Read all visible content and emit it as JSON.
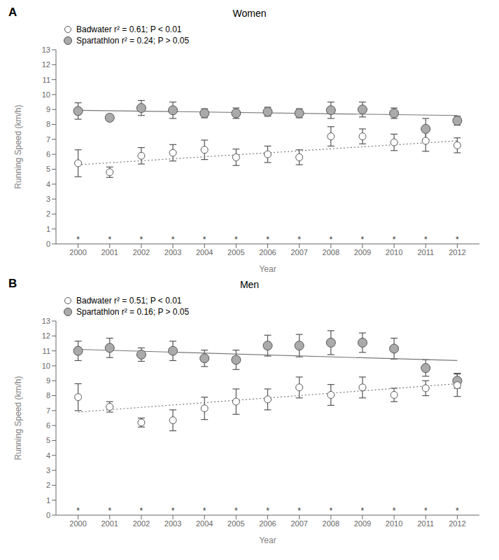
{
  "chart_data": [
    {
      "type": "scatter",
      "title": "Women",
      "annotations": [
        {
          "text": "A"
        },
        {
          "text": "*",
          "x": 2000,
          "y": 0.05,
          "color": "#333333"
        },
        {
          "text": "*",
          "x": 2001,
          "y": 0.05,
          "color": "#333333"
        },
        {
          "text": "*",
          "x": 2002,
          "y": 0.05,
          "color": "#333333"
        },
        {
          "text": "*",
          "x": 2003,
          "y": 0.05,
          "color": "#333333"
        },
        {
          "text": "*",
          "x": 2004,
          "y": 0.05,
          "color": "#333333"
        },
        {
          "text": "*",
          "x": 2005,
          "y": 0.05,
          "color": "#333333"
        },
        {
          "text": "*",
          "x": 2006,
          "y": 0.05,
          "color": "#333333"
        },
        {
          "text": "*",
          "x": 2007,
          "y": 0.05,
          "color": "#333333"
        },
        {
          "text": "*",
          "x": 2008,
          "y": 0.05,
          "color": "#333333"
        },
        {
          "text": "*",
          "x": 2009,
          "y": 0.05,
          "color": "#333333"
        },
        {
          "text": "*",
          "x": 2010,
          "y": 0.05,
          "color": "#333333"
        },
        {
          "text": "*",
          "x": 2011,
          "y": 0.05,
          "color": "#333333"
        },
        {
          "text": "*",
          "x": 2012,
          "y": 0.05,
          "color": "#333333"
        }
      ],
      "x_label": "Year",
      "y_label": "Running Speed (km/h)",
      "x": [
        2000,
        2001,
        2002,
        2003,
        2004,
        2005,
        2006,
        2007,
        2008,
        2009,
        2010,
        2011,
        2012
      ],
      "series": [
        {
          "name": "Badwater r² = 0.61; P < 0.01",
          "color": "white",
          "edge_color": "#555555",
          "marker": "circle",
          "values": [
            5.4,
            4.8,
            5.9,
            6.1,
            6.3,
            5.8,
            6.0,
            5.8,
            7.2,
            7.2,
            6.8,
            6.9,
            6.6
          ],
          "errors": [
            0.9,
            0.35,
            0.55,
            0.55,
            0.65,
            0.55,
            0.55,
            0.5,
            0.65,
            0.5,
            0.55,
            0.7,
            0.5
          ]
        },
        {
          "name": "Spartathlon r² = 0.24; P > 0.05",
          "color": "#aaaaaa",
          "edge_color": "#555555",
          "marker": "circle",
          "values": [
            8.9,
            8.45,
            9.1,
            8.95,
            8.75,
            8.75,
            8.85,
            8.75,
            8.95,
            9.0,
            8.75,
            7.7,
            8.25
          ],
          "errors": [
            0.55,
            0.2,
            0.5,
            0.55,
            0.3,
            0.35,
            0.3,
            0.3,
            0.55,
            0.5,
            0.35,
            0.7,
            0.3
          ]
        },
        {
          "type": "line",
          "line_style": "solid",
          "color": "#777777",
          "x": [
            2000,
            2012
          ],
          "values": [
            8.95,
            8.6
          ]
        },
        {
          "type": "line",
          "line_style": "dotted",
          "color": "#777777",
          "x": [
            2000,
            2012
          ],
          "values": [
            5.3,
            6.9
          ]
        }
      ],
      "xlim": [
        1999.3,
        2012.7
      ],
      "xticks": [
        2000,
        2001,
        2002,
        2003,
        2004,
        2005,
        2006,
        2007,
        2008,
        2009,
        2010,
        2011,
        2012
      ],
      "ylim": [
        0,
        13
      ],
      "yticks": [
        0,
        1,
        2,
        3,
        4,
        5,
        6,
        7,
        8,
        9,
        10,
        11,
        12,
        13
      ],
      "grid": false,
      "legend": "upper left"
    },
    {
      "type": "scatter",
      "title": "Men",
      "annotations": [
        {
          "text": "B"
        },
        {
          "text": "*",
          "x": 2000,
          "y": 0.05,
          "color": "#333333"
        },
        {
          "text": "*",
          "x": 2001,
          "y": 0.05,
          "color": "#333333"
        },
        {
          "text": "*",
          "x": 2002,
          "y": 0.05,
          "color": "#333333"
        },
        {
          "text": "*",
          "x": 2003,
          "y": 0.05,
          "color": "#333333"
        },
        {
          "text": "*",
          "x": 2004,
          "y": 0.05,
          "color": "#333333"
        },
        {
          "text": "*",
          "x": 2005,
          "y": 0.05,
          "color": "#333333"
        },
        {
          "text": "*",
          "x": 2006,
          "y": 0.05,
          "color": "#333333"
        },
        {
          "text": "*",
          "x": 2007,
          "y": 0.05,
          "color": "#333333"
        },
        {
          "text": "*",
          "x": 2008,
          "y": 0.05,
          "color": "#333333"
        },
        {
          "text": "*",
          "x": 2009,
          "y": 0.05,
          "color": "#333333"
        },
        {
          "text": "*",
          "x": 2010,
          "y": 0.05,
          "color": "#333333"
        },
        {
          "text": "*",
          "x": 2011,
          "y": 0.05,
          "color": "#333333"
        },
        {
          "text": "*",
          "x": 2012,
          "y": 0.05,
          "color": "#333333"
        }
      ],
      "x_label": "Year",
      "y_label": "Running Speed (km/h)",
      "x": [
        2000,
        2001,
        2002,
        2003,
        2004,
        2005,
        2006,
        2007,
        2008,
        2009,
        2010,
        2011,
        2012
      ],
      "series": [
        {
          "name": "Badwater r² = 0.51; P < 0.01",
          "color": "white",
          "edge_color": "#555555",
          "marker": "circle",
          "values": [
            7.9,
            7.25,
            6.2,
            6.35,
            7.15,
            7.6,
            7.75,
            8.55,
            8.05,
            8.55,
            8.05,
            8.5,
            8.7
          ],
          "errors": [
            0.9,
            0.35,
            0.3,
            0.7,
            0.75,
            0.85,
            0.7,
            0.7,
            0.7,
            0.7,
            0.45,
            0.5,
            0.75
          ]
        },
        {
          "name": "Spartathlon r² = 0.16; P > 0.05",
          "color": "#aaaaaa",
          "edge_color": "#555555",
          "marker": "circle",
          "values": [
            11.0,
            11.2,
            10.75,
            11.0,
            10.5,
            10.4,
            11.35,
            11.35,
            11.55,
            11.55,
            11.15,
            9.85,
            9.0
          ],
          "errors": [
            0.65,
            0.65,
            0.45,
            0.65,
            0.55,
            0.65,
            0.7,
            0.75,
            0.8,
            0.65,
            0.7,
            0.55,
            0.5
          ]
        },
        {
          "type": "line",
          "line_style": "solid",
          "color": "#777777",
          "x": [
            2000,
            2012
          ],
          "values": [
            11.1,
            10.35
          ]
        },
        {
          "type": "line",
          "line_style": "dotted",
          "color": "#777777",
          "x": [
            2000,
            2012
          ],
          "values": [
            6.9,
            8.8
          ]
        }
      ],
      "xlim": [
        1999.3,
        2012.7
      ],
      "xticks": [
        2000,
        2001,
        2002,
        2003,
        2004,
        2005,
        2006,
        2007,
        2008,
        2009,
        2010,
        2011,
        2012
      ],
      "ylim": [
        0,
        13
      ],
      "yticks": [
        0,
        1,
        2,
        3,
        4,
        5,
        6,
        7,
        8,
        9,
        10,
        11,
        12,
        13
      ],
      "grid": false,
      "legend": "upper left"
    }
  ]
}
